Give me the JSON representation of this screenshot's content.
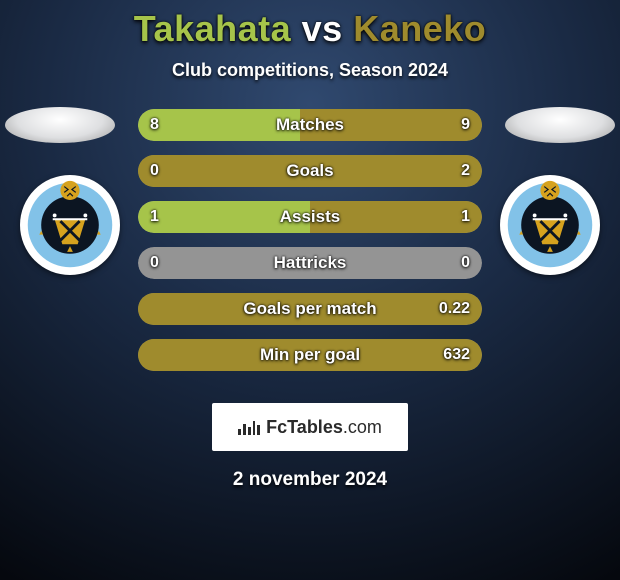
{
  "background": {
    "gradient_top": "#2f466a",
    "gradient_bottom": "#0a1424",
    "vignette": "#000000"
  },
  "title": {
    "player_a": "Takahata",
    "vs": "vs",
    "player_b": "Kaneko",
    "color_a": "#a6c44a",
    "color_vs": "#ffffff",
    "color_b": "#9f8b2d"
  },
  "subtitle": "Club competitions, Season 2024",
  "player_a": {
    "disc_color": "#dedfe1",
    "crest_ring": "#2a6fb0",
    "crest_inner": "#0f1a2a"
  },
  "player_b": {
    "disc_color": "#dedfe1",
    "crest_ring": "#2a6fb0",
    "crest_inner": "#0f1a2a"
  },
  "bars": {
    "track_color_a": "#949494",
    "track_color_b": "#949494",
    "fill_color_a": "#a6c44a",
    "fill_color_b": "#9f8b2d",
    "rows": [
      {
        "label": "Matches",
        "a": "8",
        "b": "9",
        "a_frac": 0.471,
        "b_frac": 0.529
      },
      {
        "label": "Goals",
        "a": "0",
        "b": "2",
        "a_frac": 0.0,
        "b_frac": 1.0
      },
      {
        "label": "Assists",
        "a": "1",
        "b": "1",
        "a_frac": 0.5,
        "b_frac": 0.5
      },
      {
        "label": "Hattricks",
        "a": "0",
        "b": "0",
        "a_frac": 0.0,
        "b_frac": 0.0
      },
      {
        "label": "Goals per match",
        "a": "",
        "b": "0.22",
        "a_frac": 0.0,
        "b_frac": 1.0
      },
      {
        "label": "Min per goal",
        "a": "",
        "b": "632",
        "a_frac": 0.0,
        "b_frac": 1.0
      }
    ]
  },
  "branding": {
    "text": "FcTables",
    "suffix": ".com"
  },
  "date": "2 november 2024"
}
